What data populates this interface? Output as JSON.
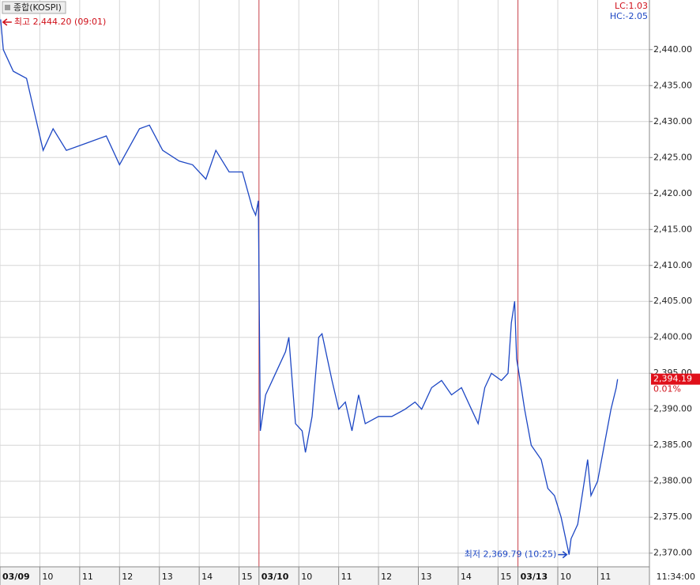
{
  "chart_data": {
    "type": "line",
    "title": "종합(KOSPI)",
    "lc_label": "LC:1.03",
    "hc_label": "HC:-2.05",
    "high_annotation": "최고 2,444.20 (09:01)",
    "low_annotation": "최저 2,369.79 (10:25)",
    "current_price": {
      "value": 2394.19,
      "label": "2,394.19"
    },
    "current_change": "0.01%",
    "current_time": "11:34:00",
    "grid": true,
    "xlim": [
      0,
      978
    ],
    "ylim": [
      2368.1,
      2446.9
    ],
    "xticks": [
      {
        "value": 0,
        "label": "03/09"
      },
      {
        "value": 60,
        "label": "10"
      },
      {
        "value": 120,
        "label": "11"
      },
      {
        "value": 180,
        "label": "12"
      },
      {
        "value": 240,
        "label": "13"
      },
      {
        "value": 300,
        "label": "14"
      },
      {
        "value": 360,
        "label": "15"
      },
      {
        "value": 390,
        "label": "03/10"
      },
      {
        "value": 450,
        "label": "10"
      },
      {
        "value": 510,
        "label": "11"
      },
      {
        "value": 570,
        "label": "12"
      },
      {
        "value": 630,
        "label": "13"
      },
      {
        "value": 690,
        "label": "14"
      },
      {
        "value": 750,
        "label": "15"
      },
      {
        "value": 780,
        "label": "03/13"
      },
      {
        "value": 840,
        "label": "10"
      },
      {
        "value": 900,
        "label": "11"
      }
    ],
    "yticks": [
      {
        "value": 2370,
        "label": "2,370.00"
      },
      {
        "value": 2375,
        "label": "2,375.00"
      },
      {
        "value": 2380,
        "label": "2,380.00"
      },
      {
        "value": 2385,
        "label": "2,385.00"
      },
      {
        "value": 2390,
        "label": "2,390.00"
      },
      {
        "value": 2395,
        "label": "2,395.00"
      },
      {
        "value": 2400,
        "label": "2,400.00"
      },
      {
        "value": 2405,
        "label": "2,405.00"
      },
      {
        "value": 2410,
        "label": "2,410.00"
      },
      {
        "value": 2415,
        "label": "2,415.00"
      },
      {
        "value": 2420,
        "label": "2,420.00"
      },
      {
        "value": 2425,
        "label": "2,425.00"
      },
      {
        "value": 2430,
        "label": "2,430.00"
      },
      {
        "value": 2435,
        "label": "2,435.00"
      },
      {
        "value": 2440,
        "label": "2,440.00"
      }
    ],
    "series": [
      {
        "name": "KOSPI",
        "color": "#1d47c4",
        "x": [
          1,
          5,
          20,
          40,
          50,
          65,
          80,
          100,
          130,
          160,
          180,
          210,
          225,
          245,
          270,
          290,
          310,
          325,
          345,
          365,
          380,
          385,
          389,
          392,
          400,
          415,
          430,
          435,
          445,
          455,
          460,
          470,
          480,
          485,
          500,
          510,
          520,
          530,
          540,
          550,
          570,
          590,
          610,
          625,
          635,
          650,
          665,
          680,
          695,
          710,
          720,
          730,
          740,
          755,
          765,
          770,
          775,
          778,
          785,
          790,
          800,
          815,
          825,
          835,
          845,
          857,
          860,
          870,
          880,
          885,
          890,
          900,
          910,
          920,
          928,
          930
        ],
        "values": [
          2444.2,
          2440,
          2437,
          2436,
          2432,
          2426,
          2429,
          2426,
          2427,
          2428,
          2424,
          2429,
          2429.5,
          2426,
          2424.5,
          2424,
          2422,
          2426,
          2423,
          2423,
          2418,
          2417,
          2419,
          2387,
          2392,
          2395,
          2398,
          2400,
          2388,
          2387,
          2384,
          2389,
          2400,
          2400.5,
          2394,
          2390,
          2391,
          2387,
          2392,
          2388,
          2389,
          2389,
          2390,
          2391,
          2390,
          2393,
          2394,
          2392,
          2393,
          2390,
          2388,
          2393,
          2395,
          2394,
          2395,
          2402,
          2405,
          2397,
          2393,
          2390,
          2385,
          2383,
          2379,
          2378,
          2375,
          2369.79,
          2372,
          2374,
          2380,
          2383,
          2378,
          2380,
          2385,
          2390,
          2393,
          2394.19
        ]
      }
    ]
  }
}
